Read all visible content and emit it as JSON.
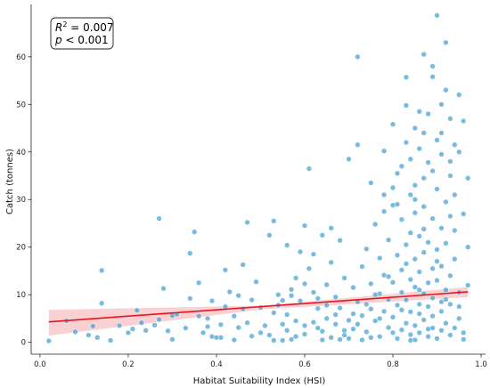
{
  "chart_data": {
    "type": "scatter",
    "xlabel": "Habitat Suitability Index (HSI)",
    "ylabel": "Catch (tonnes)",
    "xlim": [
      -0.02,
      1.01
    ],
    "ylim": [
      -2.5,
      71
    ],
    "xticks": [
      "0.0",
      "0.2",
      "0.4",
      "0.6",
      "0.8",
      "1.0"
    ],
    "xtick_values": [
      0.0,
      0.2,
      0.4,
      0.6,
      0.8,
      1.0
    ],
    "yticks": [
      "0",
      "10",
      "20",
      "30",
      "40",
      "50",
      "60"
    ],
    "ytick_values": [
      0,
      10,
      20,
      30,
      40,
      50,
      60
    ],
    "grid": false,
    "annotation": {
      "r2_label": "R",
      "r2_sup": "2",
      "r2_value": " = 0.007",
      "p_label": "p",
      "p_value": " < 0.001"
    },
    "point_color": "#3a9bd0",
    "point_edge_color": "#ffffff",
    "fit_line": {
      "color": "#e8141b",
      "x": [
        0.02,
        0.97
      ],
      "y": [
        4.3,
        10.6
      ]
    },
    "ci_band": {
      "color": "#f4a3a8",
      "x": [
        0.02,
        0.5,
        0.97
      ],
      "lower": [
        1.4,
        6.9,
        9.5
      ],
      "upper": [
        6.8,
        7.7,
        11.6
      ]
    },
    "series": [
      {
        "points": [
          [
            0.02,
            0.3
          ],
          [
            0.06,
            4.5
          ],
          [
            0.08,
            2.2
          ],
          [
            0.11,
            1.5
          ],
          [
            0.12,
            3.4
          ],
          [
            0.13,
            1.0
          ],
          [
            0.14,
            8.2
          ],
          [
            0.14,
            15.1
          ],
          [
            0.18,
            3.5
          ],
          [
            0.2,
            2.0
          ],
          [
            0.21,
            2.8
          ],
          [
            0.22,
            6.7
          ],
          [
            0.23,
            4.1
          ],
          [
            0.24,
            2.5
          ],
          [
            0.26,
            3.6
          ],
          [
            0.27,
            26.0
          ],
          [
            0.28,
            11.3
          ],
          [
            0.29,
            2.4
          ],
          [
            0.3,
            5.6
          ],
          [
            0.31,
            5.9
          ],
          [
            0.33,
            3.0
          ],
          [
            0.34,
            9.2
          ],
          [
            0.34,
            18.7
          ],
          [
            0.35,
            23.2
          ],
          [
            0.36,
            5.5
          ],
          [
            0.36,
            12.5
          ],
          [
            0.37,
            2.0
          ],
          [
            0.38,
            3.3
          ],
          [
            0.39,
            1.2
          ],
          [
            0.39,
            8.7
          ],
          [
            0.41,
            1.0
          ],
          [
            0.41,
            3.7
          ],
          [
            0.42,
            7.5
          ],
          [
            0.42,
            15.2
          ],
          [
            0.43,
            10.6
          ],
          [
            0.44,
            5.5
          ],
          [
            0.45,
            3.1
          ],
          [
            0.45,
            9.8
          ],
          [
            0.46,
            16.3
          ],
          [
            0.46,
            7.0
          ],
          [
            0.47,
            25.2
          ],
          [
            0.47,
            4.1
          ],
          [
            0.48,
            1.3
          ],
          [
            0.48,
            8.9
          ],
          [
            0.49,
            12.7
          ],
          [
            0.5,
            2.0
          ],
          [
            0.5,
            7.3
          ],
          [
            0.51,
            3.5
          ],
          [
            0.52,
            22.5
          ],
          [
            0.52,
            1.5
          ],
          [
            0.53,
            25.5
          ],
          [
            0.53,
            6.2
          ],
          [
            0.54,
            10.0
          ],
          [
            0.55,
            3.8
          ],
          [
            0.55,
            8.8
          ],
          [
            0.56,
            20.4
          ],
          [
            0.56,
            2.5
          ],
          [
            0.57,
            9.8
          ],
          [
            0.57,
            11.1
          ],
          [
            0.58,
            1.2
          ],
          [
            0.58,
            4.5
          ],
          [
            0.59,
            8.7
          ],
          [
            0.6,
            12.3
          ],
          [
            0.6,
            1.7
          ],
          [
            0.61,
            15.5
          ],
          [
            0.61,
            36.5
          ],
          [
            0.62,
            4.2
          ],
          [
            0.62,
            18.5
          ],
          [
            0.63,
            9.2
          ],
          [
            0.63,
            7.1
          ],
          [
            0.64,
            22.5
          ],
          [
            0.64,
            2.3
          ],
          [
            0.65,
            12.1
          ],
          [
            0.65,
            5.0
          ],
          [
            0.66,
            24.0
          ],
          [
            0.66,
            16.8
          ],
          [
            0.67,
            3.8
          ],
          [
            0.67,
            9.5
          ],
          [
            0.68,
            7.2
          ],
          [
            0.68,
            21.4
          ],
          [
            0.69,
            1.5
          ],
          [
            0.69,
            13.5
          ],
          [
            0.7,
            4.6
          ],
          [
            0.7,
            38.5
          ],
          [
            0.71,
            11.5
          ],
          [
            0.71,
            2.8
          ],
          [
            0.72,
            60.0
          ],
          [
            0.72,
            41.5
          ],
          [
            0.72,
            8.5
          ],
          [
            0.73,
            15.9
          ],
          [
            0.73,
            5.6
          ],
          [
            0.74,
            2.2
          ],
          [
            0.74,
            19.6
          ],
          [
            0.75,
            12.3
          ],
          [
            0.75,
            7.0
          ],
          [
            0.75,
            33.5
          ],
          [
            0.76,
            4.5
          ],
          [
            0.76,
            24.8
          ],
          [
            0.77,
            10.2
          ],
          [
            0.77,
            1.2
          ],
          [
            0.77,
            17.7
          ],
          [
            0.78,
            6.5
          ],
          [
            0.78,
            40.2
          ],
          [
            0.78,
            14.1
          ],
          [
            0.79,
            3.1
          ],
          [
            0.79,
            21.5
          ],
          [
            0.79,
            9.0
          ],
          [
            0.8,
            45.8
          ],
          [
            0.8,
            5.3
          ],
          [
            0.8,
            28.8
          ],
          [
            0.8,
            12.6
          ],
          [
            0.81,
            0.8
          ],
          [
            0.81,
            18.3
          ],
          [
            0.81,
            7.8
          ],
          [
            0.81,
            35.5
          ],
          [
            0.82,
            2.6
          ],
          [
            0.82,
            10.5
          ],
          [
            0.82,
            25.8
          ],
          [
            0.82,
            15.2
          ],
          [
            0.83,
            4.0
          ],
          [
            0.83,
            49.8
          ],
          [
            0.83,
            55.7
          ],
          [
            0.83,
            20.5
          ],
          [
            0.83,
            8.9
          ],
          [
            0.84,
            1.6
          ],
          [
            0.84,
            13.2
          ],
          [
            0.84,
            31.0
          ],
          [
            0.84,
            6.4
          ],
          [
            0.84,
            23.0
          ],
          [
            0.85,
            0.5
          ],
          [
            0.85,
            11.6
          ],
          [
            0.85,
            45.0
          ],
          [
            0.85,
            17.5
          ],
          [
            0.85,
            3.5
          ],
          [
            0.85,
            27.2
          ],
          [
            0.86,
            8.0
          ],
          [
            0.86,
            40.7
          ],
          [
            0.86,
            14.8
          ],
          [
            0.86,
            2.0
          ],
          [
            0.86,
            22.3
          ],
          [
            0.86,
            6.0
          ],
          [
            0.87,
            60.5
          ],
          [
            0.87,
            10.2
          ],
          [
            0.87,
            34.5
          ],
          [
            0.87,
            18.9
          ],
          [
            0.87,
            4.7
          ],
          [
            0.87,
            28.5
          ],
          [
            0.88,
            1.2
          ],
          [
            0.88,
            12.5
          ],
          [
            0.88,
            48.0
          ],
          [
            0.88,
            7.5
          ],
          [
            0.88,
            21.0
          ],
          [
            0.88,
            37.8
          ],
          [
            0.89,
            3.0
          ],
          [
            0.89,
            15.5
          ],
          [
            0.89,
            9.3
          ],
          [
            0.89,
            55.8
          ],
          [
            0.89,
            26.0
          ],
          [
            0.89,
            5.5
          ],
          [
            0.9,
            42.5
          ],
          [
            0.9,
            0.8
          ],
          [
            0.9,
            13.0
          ],
          [
            0.9,
            19.5
          ],
          [
            0.9,
            32.2
          ],
          [
            0.9,
            68.7
          ],
          [
            0.91,
            8.5
          ],
          [
            0.91,
            24.0
          ],
          [
            0.91,
            2.5
          ],
          [
            0.91,
            39.5
          ],
          [
            0.91,
            16.0
          ],
          [
            0.91,
            6.5
          ],
          [
            0.92,
            63.0
          ],
          [
            0.92,
            11.0
          ],
          [
            0.92,
            29.5
          ],
          [
            0.92,
            4.0
          ],
          [
            0.92,
            20.8
          ],
          [
            0.93,
            47.0
          ],
          [
            0.93,
            1.5
          ],
          [
            0.93,
            14.0
          ],
          [
            0.93,
            35.0
          ],
          [
            0.93,
            8.0
          ],
          [
            0.94,
            23.5
          ],
          [
            0.94,
            3.0
          ],
          [
            0.94,
            17.5
          ],
          [
            0.95,
            40.0
          ],
          [
            0.95,
            10.5
          ],
          [
            0.95,
            5.0
          ],
          [
            0.96,
            27.0
          ],
          [
            0.96,
            2.0
          ],
          [
            0.97,
            34.5
          ],
          [
            0.97,
            12.0
          ],
          [
            0.97,
            20.0
          ],
          [
            0.96,
            0.6
          ],
          [
            0.95,
            7.5
          ],
          [
            0.94,
            31.0
          ],
          [
            0.93,
            26.5
          ],
          [
            0.92,
            9.0
          ],
          [
            0.91,
            44.0
          ],
          [
            0.9,
            17.0
          ],
          [
            0.89,
            36.0
          ],
          [
            0.88,
            2.8
          ],
          [
            0.87,
            23.8
          ],
          [
            0.86,
            11.0
          ],
          [
            0.85,
            33.0
          ],
          [
            0.84,
            0.4
          ],
          [
            0.83,
            16.5
          ],
          [
            0.82,
            6.8
          ],
          [
            0.81,
            29.0
          ],
          [
            0.8,
            2.0
          ],
          [
            0.79,
            13.8
          ],
          [
            0.78,
            27.5
          ],
          [
            0.77,
            5.0
          ],
          [
            0.76,
            10.0
          ],
          [
            0.75,
            1.0
          ],
          [
            0.74,
            8.0
          ],
          [
            0.73,
            0.5
          ],
          [
            0.72,
            3.8
          ],
          [
            0.71,
            6.0
          ],
          [
            0.7,
            0.8
          ],
          [
            0.69,
            2.5
          ],
          [
            0.68,
            0.6
          ],
          [
            0.67,
            5.8
          ],
          [
            0.66,
            1.0
          ],
          [
            0.65,
            7.8
          ],
          [
            0.64,
            0.5
          ],
          [
            0.63,
            3.0
          ],
          [
            0.62,
            10.5
          ],
          [
            0.57,
            0.6
          ],
          [
            0.55,
            0.4
          ],
          [
            0.56,
            5.8
          ],
          [
            0.58,
            13.5
          ],
          [
            0.59,
            19.0
          ],
          [
            0.6,
            3.5
          ],
          [
            0.6,
            24.5
          ],
          [
            0.54,
            7.8
          ],
          [
            0.53,
            0.4
          ],
          [
            0.44,
            0.5
          ],
          [
            0.4,
            1.0
          ],
          [
            0.38,
            5.0
          ],
          [
            0.3,
            0.6
          ],
          [
            0.16,
            0.4
          ],
          [
            0.27,
            4.8
          ],
          [
            0.95,
            52.0
          ],
          [
            0.94,
            41.5
          ],
          [
            0.91,
            50.0
          ],
          [
            0.84,
            38.5
          ],
          [
            0.83,
            42.0
          ],
          [
            0.86,
            48.5
          ],
          [
            0.82,
            37.0
          ],
          [
            0.8,
            32.5
          ],
          [
            0.78,
            31.0
          ],
          [
            0.89,
            58.0
          ],
          [
            0.96,
            46.5
          ],
          [
            0.93,
            38.0
          ],
          [
            0.85,
            30.0
          ],
          [
            0.87,
            44.0
          ],
          [
            0.92,
            53.0
          ]
        ]
      }
    ]
  }
}
